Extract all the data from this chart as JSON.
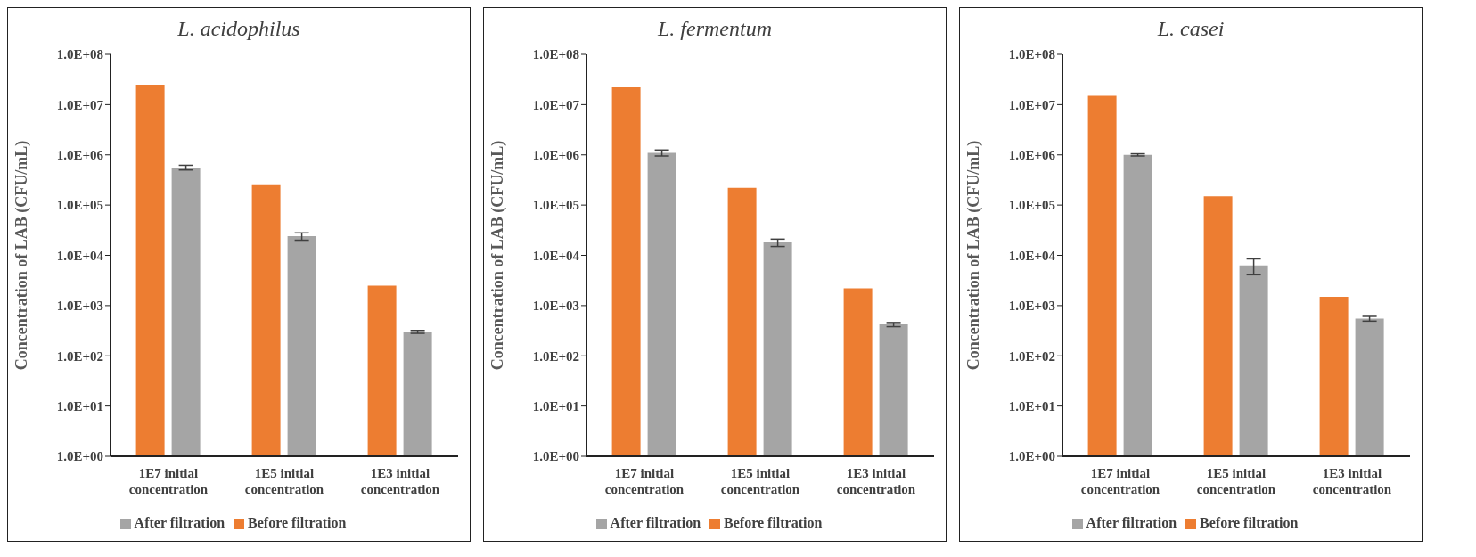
{
  "chart_data": [
    {
      "type": "bar",
      "title": "L. acidophilus",
      "ylabel": "Concentration of LAB (CFU/mL)",
      "categories": [
        "1E7 initial concentration",
        "1E5 initial concentration",
        "1E3 initial concentration"
      ],
      "log": true,
      "ylim": [
        1,
        100000000
      ],
      "yticks": [
        {
          "value": 1,
          "label": "1.0E+00"
        },
        {
          "value": 10,
          "label": "1.0E+01"
        },
        {
          "value": 100,
          "label": "1.0E+02"
        },
        {
          "value": 1000,
          "label": "1.0E+03"
        },
        {
          "value": 10000,
          "label": "1.0E+04"
        },
        {
          "value": 100000,
          "label": "1.0E+05"
        },
        {
          "value": 1000000,
          "label": "1.0E+06"
        },
        {
          "value": 10000000,
          "label": "1.0E+07"
        },
        {
          "value": 100000000,
          "label": "1.0E+08"
        }
      ],
      "grid": false,
      "legend": "bottom",
      "series": [
        {
          "name": "Before filtration",
          "color": "#ed7d31",
          "values": [
            25000000,
            250000,
            2500
          ]
        },
        {
          "name": "After filtration",
          "color": "#a5a5a5",
          "values": [
            560000,
            24000,
            300
          ],
          "errors": [
            60000,
            4000,
            20
          ]
        }
      ]
    },
    {
      "type": "bar",
      "title": "L. fermentum",
      "ylabel": "Concentration of LAB (CFU/mL)",
      "categories": [
        "1E7 initial concentration",
        "1E5 initial concentration",
        "1E3 initial concentration"
      ],
      "log": true,
      "ylim": [
        1,
        100000000
      ],
      "yticks": [
        {
          "value": 1,
          "label": "1.0E+00"
        },
        {
          "value": 10,
          "label": "1.0E+01"
        },
        {
          "value": 100,
          "label": "1.0E+02"
        },
        {
          "value": 1000,
          "label": "1.0E+03"
        },
        {
          "value": 10000,
          "label": "1.0E+04"
        },
        {
          "value": 100000,
          "label": "1.0E+05"
        },
        {
          "value": 1000000,
          "label": "1.0E+06"
        },
        {
          "value": 10000000,
          "label": "1.0E+07"
        },
        {
          "value": 100000000,
          "label": "1.0E+08"
        }
      ],
      "grid": false,
      "legend": "bottom",
      "series": [
        {
          "name": "Before filtration",
          "color": "#ed7d31",
          "values": [
            22000000,
            220000,
            2200
          ]
        },
        {
          "name": "After filtration",
          "color": "#a5a5a5",
          "values": [
            1100000,
            18000,
            420
          ],
          "errors": [
            150000,
            3000,
            40
          ]
        }
      ]
    },
    {
      "type": "bar",
      "title": "L. casei",
      "ylabel": "Concentration of LAB (CFU/mL)",
      "categories": [
        "1E7 initial concentration",
        "1E5 initial concentration",
        "1E3 initial concentration"
      ],
      "log": true,
      "ylim": [
        1,
        100000000
      ],
      "yticks": [
        {
          "value": 1,
          "label": "1.0E+00"
        },
        {
          "value": 10,
          "label": "1.0E+01"
        },
        {
          "value": 100,
          "label": "1.0E+02"
        },
        {
          "value": 1000,
          "label": "1.0E+03"
        },
        {
          "value": 10000,
          "label": "1.0E+04"
        },
        {
          "value": 100000,
          "label": "1.0E+05"
        },
        {
          "value": 1000000,
          "label": "1.0E+06"
        },
        {
          "value": 10000000,
          "label": "1.0E+07"
        },
        {
          "value": 100000000,
          "label": "1.0E+08"
        }
      ],
      "grid": false,
      "legend": "bottom",
      "series": [
        {
          "name": "Before filtration",
          "color": "#ed7d31",
          "values": [
            15000000,
            150000,
            1500
          ]
        },
        {
          "name": "After filtration",
          "color": "#a5a5a5",
          "values": [
            1000000,
            6300,
            550
          ],
          "errors": [
            50000,
            2200,
            60
          ]
        }
      ]
    }
  ]
}
